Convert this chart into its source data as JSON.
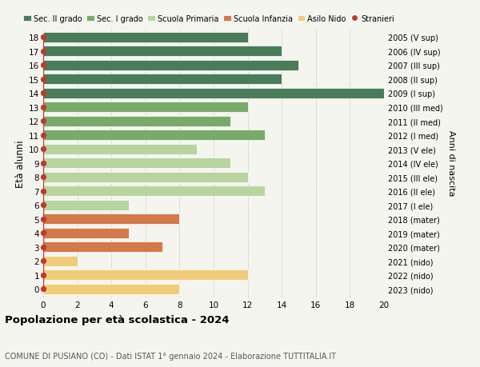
{
  "ages": [
    18,
    17,
    16,
    15,
    14,
    13,
    12,
    11,
    10,
    9,
    8,
    7,
    6,
    5,
    4,
    3,
    2,
    1,
    0
  ],
  "right_labels": [
    "2005 (V sup)",
    "2006 (IV sup)",
    "2007 (III sup)",
    "2008 (II sup)",
    "2009 (I sup)",
    "2010 (III med)",
    "2011 (II med)",
    "2012 (I med)",
    "2013 (V ele)",
    "2014 (IV ele)",
    "2015 (III ele)",
    "2016 (II ele)",
    "2017 (I ele)",
    "2018 (mater)",
    "2019 (mater)",
    "2020 (mater)",
    "2021 (nido)",
    "2022 (nido)",
    "2023 (nido)"
  ],
  "bar_values": [
    12,
    14,
    15,
    14,
    20,
    12,
    11,
    13,
    9,
    11,
    12,
    13,
    5,
    8,
    5,
    7,
    2,
    12,
    8
  ],
  "bar_colors": [
    "#4a7c59",
    "#4a7c59",
    "#4a7c59",
    "#4a7c59",
    "#4a7c59",
    "#7aaa6a",
    "#7aaa6a",
    "#7aaa6a",
    "#b8d4a0",
    "#b8d4a0",
    "#b8d4a0",
    "#b8d4a0",
    "#b8d4a0",
    "#d4794a",
    "#d4794a",
    "#d4794a",
    "#f0cc7a",
    "#f0cc7a",
    "#f0cc7a"
  ],
  "legend_labels": [
    "Sec. II grado",
    "Sec. I grado",
    "Scuola Primaria",
    "Scuola Infanzia",
    "Asilo Nido",
    "Stranieri"
  ],
  "legend_colors": [
    "#4a7c59",
    "#7aaa6a",
    "#b8d4a0",
    "#d4794a",
    "#f0cc7a",
    "#c0392b"
  ],
  "stranieri_x": [
    0,
    1,
    0,
    1,
    0,
    1,
    0,
    0,
    0,
    0,
    0,
    0,
    0,
    0,
    1,
    1,
    0,
    1,
    0
  ],
  "xlim": [
    0,
    20
  ],
  "ylabel": "Età alunni",
  "right_ylabel": "Anni di nascita",
  "title": "Popolazione per età scolastica - 2024",
  "subtitle": "COMUNE DI PUSIANO (CO) - Dati ISTAT 1° gennaio 2024 - Elaborazione TUTTITALIA.IT",
  "background_color": "#f5f5f0",
  "stranieri_color": "#c0392b"
}
